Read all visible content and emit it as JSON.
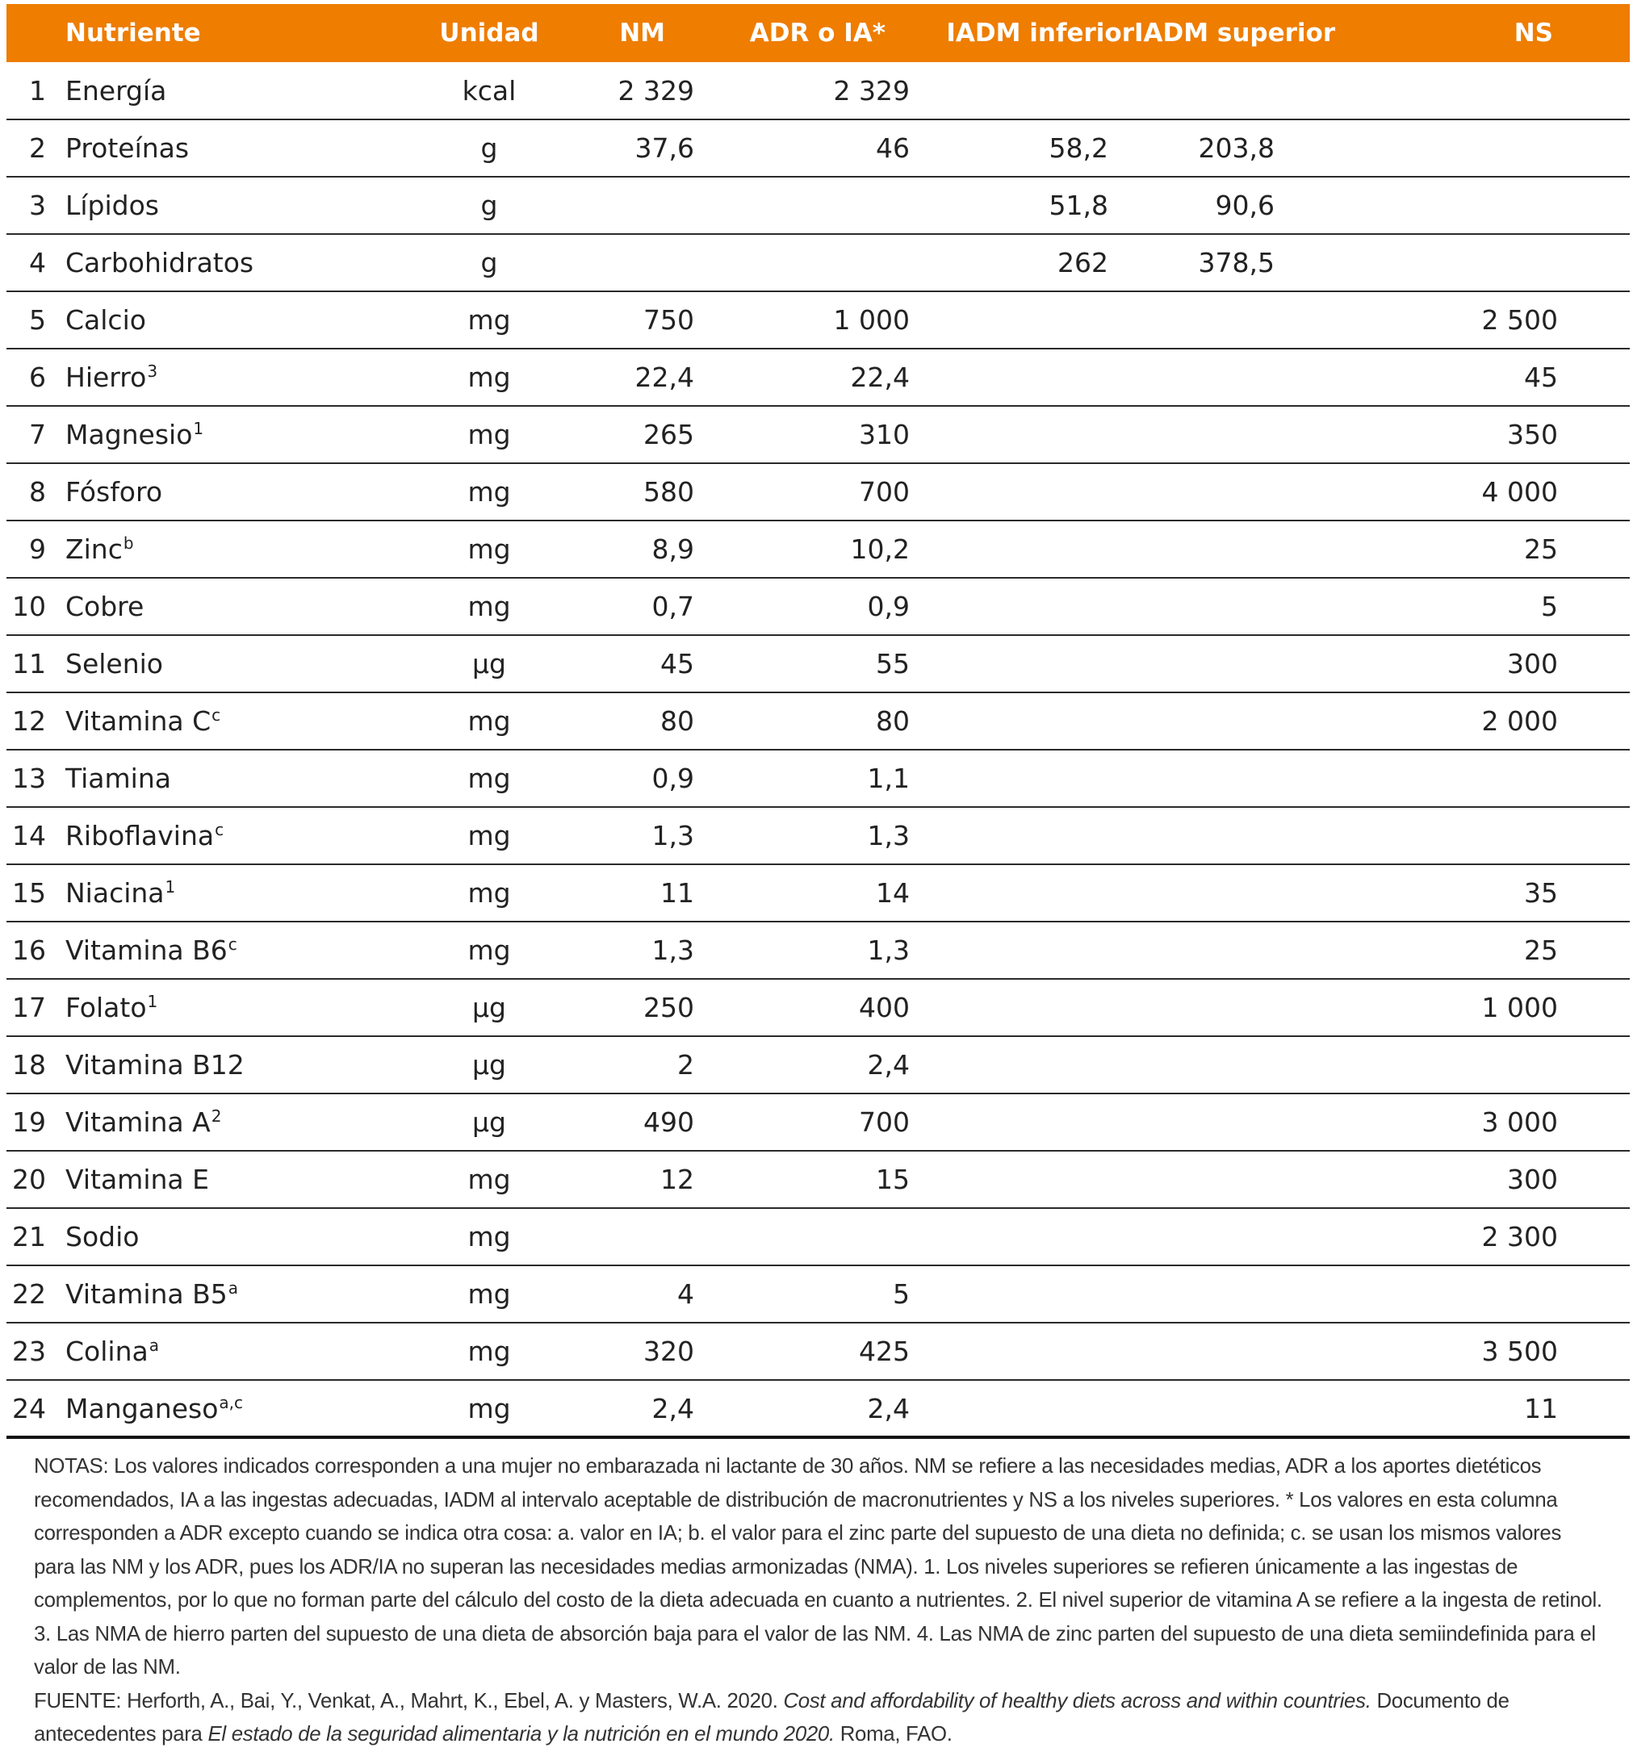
{
  "colors": {
    "header_bg": "#ee7d00",
    "header_text": "#ffffff",
    "rule": "#2a2a2a"
  },
  "table": {
    "headers": {
      "nutriente": "Nutriente",
      "unidad": "Unidad",
      "nm": "NM",
      "adr": "ADR o IA*",
      "iadm_inferior": "IADM inferior",
      "iadm_superior": "IADM superior",
      "ns": "NS"
    },
    "rows": [
      {
        "n": "1",
        "name": "Energía",
        "sup": "",
        "unit": "kcal",
        "nm": "2 329",
        "adr": "2 329",
        "lo": "",
        "hi": "",
        "ns": ""
      },
      {
        "n": "2",
        "name": "Proteínas",
        "sup": "",
        "unit": "g",
        "nm": "37,6",
        "adr": "46",
        "lo": "58,2",
        "hi": "203,8",
        "ns": ""
      },
      {
        "n": "3",
        "name": "Lípidos",
        "sup": "",
        "unit": "g",
        "nm": "",
        "adr": "",
        "lo": "51,8",
        "hi": "90,6",
        "ns": ""
      },
      {
        "n": "4",
        "name": "Carbohidratos",
        "sup": "",
        "unit": "g",
        "nm": "",
        "adr": "",
        "lo": "262",
        "hi": "378,5",
        "ns": ""
      },
      {
        "n": "5",
        "name": "Calcio",
        "sup": "",
        "unit": "mg",
        "nm": "750",
        "adr": "1 000",
        "lo": "",
        "hi": "",
        "ns": "2 500"
      },
      {
        "n": "6",
        "name": "Hierro",
        "sup": "3",
        "unit": "mg",
        "nm": "22,4",
        "adr": "22,4",
        "lo": "",
        "hi": "",
        "ns": "45"
      },
      {
        "n": "7",
        "name": "Magnesio",
        "sup": "1",
        "unit": "mg",
        "nm": "265",
        "adr": "310",
        "lo": "",
        "hi": "",
        "ns": "350"
      },
      {
        "n": "8",
        "name": "Fósforo",
        "sup": "",
        "unit": "mg",
        "nm": "580",
        "adr": "700",
        "lo": "",
        "hi": "",
        "ns": "4 000"
      },
      {
        "n": "9",
        "name": "Zinc",
        "sup": "b",
        "unit": "mg",
        "nm": "8,9",
        "adr": "10,2",
        "lo": "",
        "hi": "",
        "ns": "25"
      },
      {
        "n": "10",
        "name": "Cobre",
        "sup": "",
        "unit": "mg",
        "nm": "0,7",
        "adr": "0,9",
        "lo": "",
        "hi": "",
        "ns": "5"
      },
      {
        "n": "11",
        "name": "Selenio",
        "sup": "",
        "unit": "μg",
        "nm": "45",
        "adr": "55",
        "lo": "",
        "hi": "",
        "ns": "300"
      },
      {
        "n": "12",
        "name": "Vitamina C",
        "sup": "c",
        "unit": "mg",
        "nm": "80",
        "adr": "80",
        "lo": "",
        "hi": "",
        "ns": "2 000"
      },
      {
        "n": "13",
        "name": "Tiamina",
        "sup": "",
        "unit": "mg",
        "nm": "0,9",
        "adr": "1,1",
        "lo": "",
        "hi": "",
        "ns": ""
      },
      {
        "n": "14",
        "name": "Riboflavina",
        "sup": "c",
        "unit": "mg",
        "nm": "1,3",
        "adr": "1,3",
        "lo": "",
        "hi": "",
        "ns": ""
      },
      {
        "n": "15",
        "name": "Niacina",
        "sup": "1",
        "unit": "mg",
        "nm": "11",
        "adr": "14",
        "lo": "",
        "hi": "",
        "ns": "35"
      },
      {
        "n": "16",
        "name": "Vitamina B6",
        "sup": "c",
        "unit": "mg",
        "nm": "1,3",
        "adr": "1,3",
        "lo": "",
        "hi": "",
        "ns": "25"
      },
      {
        "n": "17",
        "name": "Folato",
        "sup": "1",
        "unit": "μg",
        "nm": "250",
        "adr": "400",
        "lo": "",
        "hi": "",
        "ns": "1 000"
      },
      {
        "n": "18",
        "name": "Vitamina B12",
        "sup": "",
        "unit": "μg",
        "nm": "2",
        "adr": "2,4",
        "lo": "",
        "hi": "",
        "ns": ""
      },
      {
        "n": "19",
        "name": "Vitamina A",
        "sup": "2",
        "unit": "μg",
        "nm": "490",
        "adr": "700",
        "lo": "",
        "hi": "",
        "ns": "3 000"
      },
      {
        "n": "20",
        "name": "Vitamina E",
        "sup": "",
        "unit": "mg",
        "nm": "12",
        "adr": "15",
        "lo": "",
        "hi": "",
        "ns": "300"
      },
      {
        "n": "21",
        "name": "Sodio",
        "sup": "",
        "unit": "mg",
        "nm": "",
        "adr": "",
        "lo": "",
        "hi": "",
        "ns": "2 300"
      },
      {
        "n": "22",
        "name": "Vitamina B5",
        "sup": "a",
        "unit": "mg",
        "nm": "4",
        "adr": "5",
        "lo": "",
        "hi": "",
        "ns": ""
      },
      {
        "n": "23",
        "name": "Colina",
        "sup": "a",
        "unit": "mg",
        "nm": "320",
        "adr": "425",
        "lo": "",
        "hi": "",
        "ns": "3 500"
      },
      {
        "n": "24",
        "name": "Manganeso",
        "sup": "a,c",
        "unit": "mg",
        "nm": "2,4",
        "adr": "2,4",
        "lo": "",
        "hi": "",
        "ns": "11"
      }
    ]
  },
  "notes": {
    "notas": "NOTAS: Los valores indicados corresponden a una mujer no embarazada ni lactante de 30 años. NM se refiere a las necesidades medias, ADR a los aportes dietéticos recomendados, IA a las ingestas adecuadas, IADM al intervalo aceptable de distribución de macronutrientes y NS a los niveles superiores. * Los valores en esta columna corresponden a ADR excepto cuando se indica otra cosa: a. valor en IA; b. el valor para el zinc parte del supuesto de una dieta no definida; c. se usan los mismos valores para las NM y los ADR, pues los ADR/IA no superan las necesidades medias armonizadas (NMA). 1. Los niveles superiores se refieren únicamente a las ingestas de complementos, por lo que no forman parte del cálculo del costo de la dieta adecuada en cuanto a nutrientes. 2. El nivel superior de vitamina A se refiere a la ingesta de retinol. 3. Las NMA de hierro parten del supuesto de una dieta de absorción baja para el valor de las NM. 4. Las NMA de zinc parten del supuesto de una dieta semiindefinida para el valor de las NM.",
    "fuente_prefix": "FUENTE: Herforth, A., Bai, Y., Venkat, A., Mahrt, K., Ebel, A. y Masters, W.A. 2020.",
    "fuente_title": "Cost and affordability of healthy diets across and within countries.",
    "fuente_middle": "Documento de antecedentes para",
    "fuente_report": "El estado de la seguridad alimentaria y la nutrición en el mundo 2020.",
    "fuente_suffix": "Roma, FAO."
  }
}
